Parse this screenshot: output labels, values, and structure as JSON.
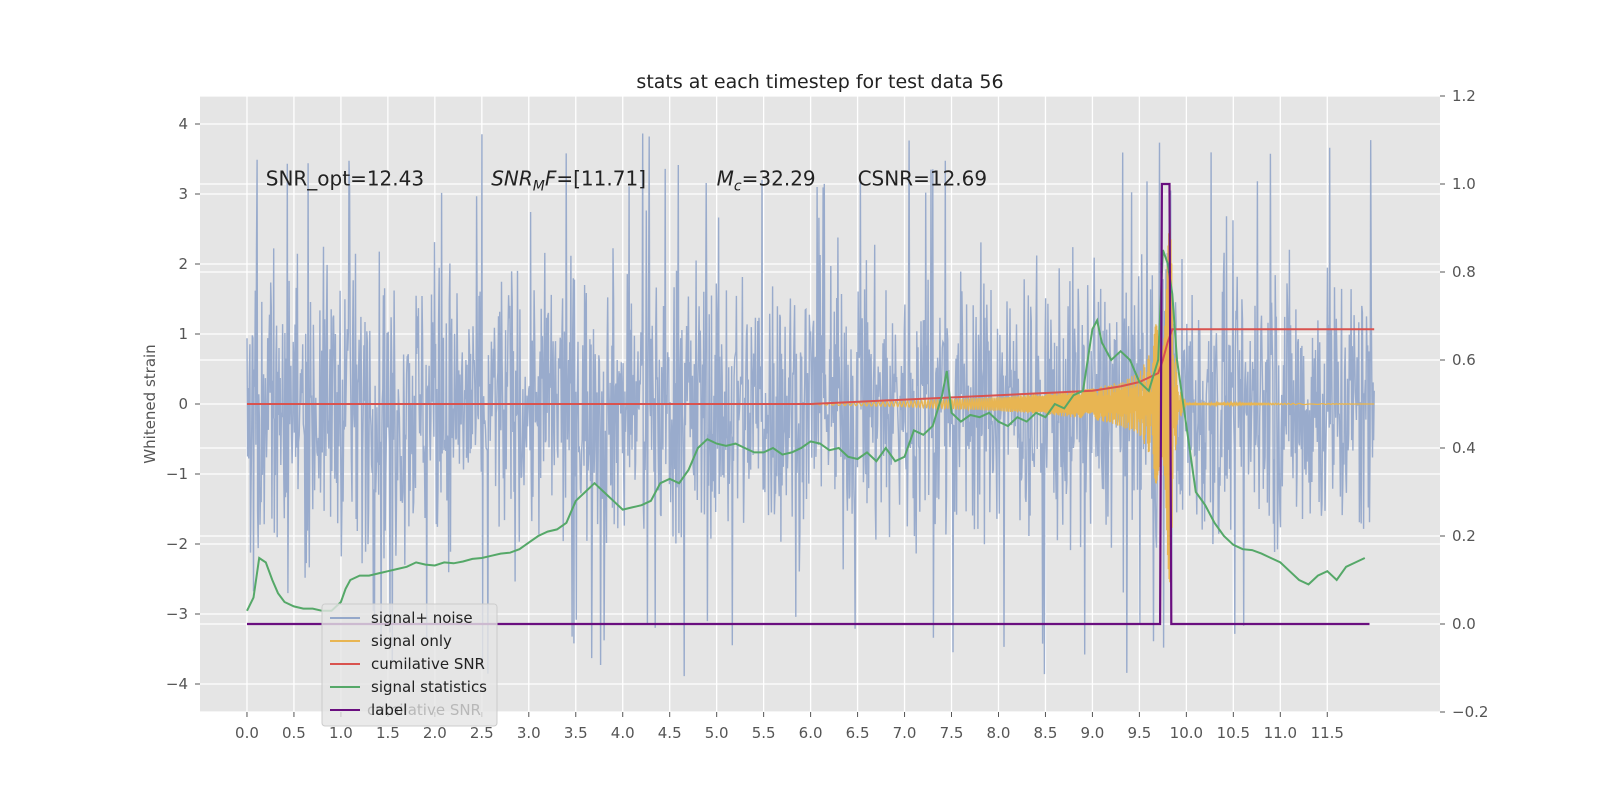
{
  "chart_data": {
    "type": "line",
    "title": "stats at each timestep for test data 56",
    "ylabel": "Whitened strain",
    "xlabel": "",
    "xlim": [
      -0.5,
      12.7
    ],
    "ylim": [
      -4.4,
      4.4
    ],
    "y2lim": [
      -0.2,
      1.2
    ],
    "x_ticks": [
      0.0,
      0.5,
      1.0,
      1.5,
      2.0,
      2.5,
      3.0,
      3.5,
      4.0,
      4.5,
      5.0,
      5.5,
      6.0,
      6.5,
      7.0,
      7.5,
      8.0,
      8.5,
      9.0,
      9.5,
      10.0,
      10.5,
      11.0,
      11.5
    ],
    "x_tick_labels": [
      "0.0",
      "0.5",
      "1.0",
      "1.5",
      "2.0",
      "2.5",
      "3.0",
      "3.5",
      "4.0",
      "4.5",
      "5.0",
      "5.5",
      "6.0",
      "6.5",
      "7.0",
      "7.5",
      "8.0",
      "8.5",
      "9.0",
      "9.5",
      "10.0",
      "10.5",
      "11.0",
      "11.5"
    ],
    "y_ticks": [
      4,
      3,
      2,
      1,
      0,
      -1,
      -2,
      -3,
      -4
    ],
    "y_tick_labels": [
      "4",
      "3",
      "2",
      "1",
      "0",
      "−1",
      "−2",
      "−3",
      "−4"
    ],
    "y2_ticks": [
      1.2,
      1.0,
      0.8,
      0.6,
      0.4,
      0.2,
      0.0,
      -0.2
    ],
    "y2_tick_labels": [
      "1.2",
      "1.0",
      "0.8",
      "0.6",
      "0.4",
      "0.2",
      "0.0",
      "−0.2"
    ],
    "grid": true,
    "legend_position": "bottom-left",
    "annotations": [
      {
        "key": "snr_opt",
        "segments": [
          {
            "t": "SNR_opt=12.43"
          }
        ],
        "x": 0.2,
        "y": 3.12
      },
      {
        "key": "snr_mf",
        "segments": [
          {
            "t": "SNR",
            "i": true
          },
          {
            "t": "M",
            "i": true,
            "sub": true
          },
          {
            "t": "F",
            "i": true
          },
          {
            "t": "=[11.71]"
          }
        ],
        "x": 2.6,
        "y": 3.12
      },
      {
        "key": "mc",
        "segments": [
          {
            "t": "M",
            "i": true
          },
          {
            "t": "c",
            "i": true,
            "sub": true
          },
          {
            "t": "=32.29"
          }
        ],
        "x": 5.0,
        "y": 3.12
      },
      {
        "key": "csnr",
        "segments": [
          {
            "t": "CSNR=12.69"
          }
        ],
        "x": 6.5,
        "y": 3.12
      }
    ],
    "series": [
      {
        "name": "signal+ noise",
        "color": "#95a8ca",
        "axis": "left",
        "description": "whitened noisy strain, roughly within -3 to +3.5 over 0-12",
        "x_range": [
          0.0,
          12.0
        ],
        "envelope": [
          -2.3,
          2.2
        ],
        "peak_range": [
          -4.0,
          4.0
        ]
      },
      {
        "name": "signal only",
        "color": "#e8b552",
        "axis": "left",
        "description": "chirp rising in amplitude near merger",
        "x": [
          6.0,
          7.0,
          8.0,
          8.5,
          9.0,
          9.3,
          9.5,
          9.6,
          9.7,
          9.75,
          9.8,
          9.85,
          9.9,
          10.0,
          12.0
        ],
        "amplitude": [
          0.01,
          0.04,
          0.1,
          0.15,
          0.22,
          0.32,
          0.45,
          0.7,
          1.3,
          2.1,
          2.8,
          2.3,
          0.3,
          0.02,
          0.0
        ]
      },
      {
        "name": "cumilative SNR",
        "color": "#d9534f",
        "axis": "right",
        "x": [
          0.0,
          6.0,
          7.0,
          8.0,
          8.5,
          9.0,
          9.3,
          9.5,
          9.6,
          9.7,
          9.75,
          9.8,
          9.85,
          9.9,
          12.0
        ],
        "values": [
          0.5,
          0.5,
          0.51,
          0.52,
          0.525,
          0.53,
          0.54,
          0.55,
          0.56,
          0.57,
          0.6,
          0.64,
          0.67,
          0.67,
          0.67
        ]
      },
      {
        "name": "signal statistics",
        "color": "#55a868",
        "axis": "right",
        "x": [
          0.0,
          0.07,
          0.13,
          0.2,
          0.27,
          0.33,
          0.4,
          0.5,
          0.6,
          0.7,
          0.8,
          0.9,
          1.0,
          1.05,
          1.1,
          1.2,
          1.3,
          1.4,
          1.5,
          1.6,
          1.7,
          1.8,
          1.9,
          2.0,
          2.1,
          2.2,
          2.3,
          2.4,
          2.5,
          2.6,
          2.7,
          2.8,
          2.9,
          3.0,
          3.1,
          3.2,
          3.3,
          3.4,
          3.5,
          3.6,
          3.7,
          3.8,
          3.9,
          4.0,
          4.1,
          4.2,
          4.3,
          4.4,
          4.5,
          4.6,
          4.7,
          4.8,
          4.9,
          5.0,
          5.1,
          5.2,
          5.3,
          5.4,
          5.5,
          5.6,
          5.7,
          5.8,
          5.9,
          6.0,
          6.1,
          6.2,
          6.3,
          6.4,
          6.5,
          6.6,
          6.7,
          6.8,
          6.9,
          7.0,
          7.1,
          7.2,
          7.3,
          7.4,
          7.45,
          7.5,
          7.6,
          7.7,
          7.8,
          7.9,
          8.0,
          8.1,
          8.2,
          8.3,
          8.4,
          8.5,
          8.6,
          8.7,
          8.8,
          8.9,
          9.0,
          9.05,
          9.1,
          9.2,
          9.3,
          9.4,
          9.5,
          9.6,
          9.7,
          9.75,
          9.8,
          9.85,
          9.9,
          10.0,
          10.1,
          10.2,
          10.3,
          10.4,
          10.5,
          10.6,
          10.7,
          10.8,
          10.9,
          11.0,
          11.1,
          11.2,
          11.3,
          11.4,
          11.5,
          11.6,
          11.7,
          11.8,
          11.9
        ],
        "values": [
          0.03,
          0.06,
          0.15,
          0.14,
          0.1,
          0.07,
          0.05,
          0.04,
          0.035,
          0.035,
          0.03,
          0.03,
          0.05,
          0.08,
          0.1,
          0.11,
          0.11,
          0.115,
          0.12,
          0.125,
          0.13,
          0.14,
          0.135,
          0.133,
          0.14,
          0.138,
          0.142,
          0.148,
          0.15,
          0.155,
          0.16,
          0.162,
          0.17,
          0.185,
          0.2,
          0.21,
          0.215,
          0.23,
          0.28,
          0.3,
          0.32,
          0.3,
          0.28,
          0.26,
          0.265,
          0.27,
          0.28,
          0.32,
          0.33,
          0.32,
          0.35,
          0.4,
          0.42,
          0.41,
          0.405,
          0.41,
          0.4,
          0.39,
          0.39,
          0.4,
          0.385,
          0.39,
          0.4,
          0.415,
          0.41,
          0.395,
          0.4,
          0.38,
          0.375,
          0.39,
          0.37,
          0.4,
          0.37,
          0.38,
          0.44,
          0.43,
          0.45,
          0.52,
          0.575,
          0.48,
          0.46,
          0.475,
          0.47,
          0.48,
          0.46,
          0.45,
          0.47,
          0.46,
          0.48,
          0.47,
          0.5,
          0.49,
          0.52,
          0.53,
          0.67,
          0.69,
          0.64,
          0.6,
          0.62,
          0.6,
          0.55,
          0.53,
          0.6,
          0.85,
          0.82,
          0.75,
          0.6,
          0.45,
          0.3,
          0.27,
          0.23,
          0.2,
          0.18,
          0.17,
          0.168,
          0.16,
          0.15,
          0.14,
          0.12,
          0.1,
          0.09,
          0.11,
          0.12,
          0.1,
          0.13,
          0.14,
          0.15
        ]
      },
      {
        "name": "label",
        "color": "#6a0f7f",
        "axis": "right",
        "x": [
          0.0,
          9.72,
          9.74,
          9.82,
          9.84,
          11.95
        ],
        "values": [
          0.0,
          0.0,
          1.0,
          1.0,
          0.0,
          0.0
        ]
      }
    ],
    "legend": [
      "signal+ noise",
      "signal only",
      "cumilative SNR",
      "signal statistics",
      "label"
    ],
    "legend_hidden_text": "cumilative SNR"
  }
}
